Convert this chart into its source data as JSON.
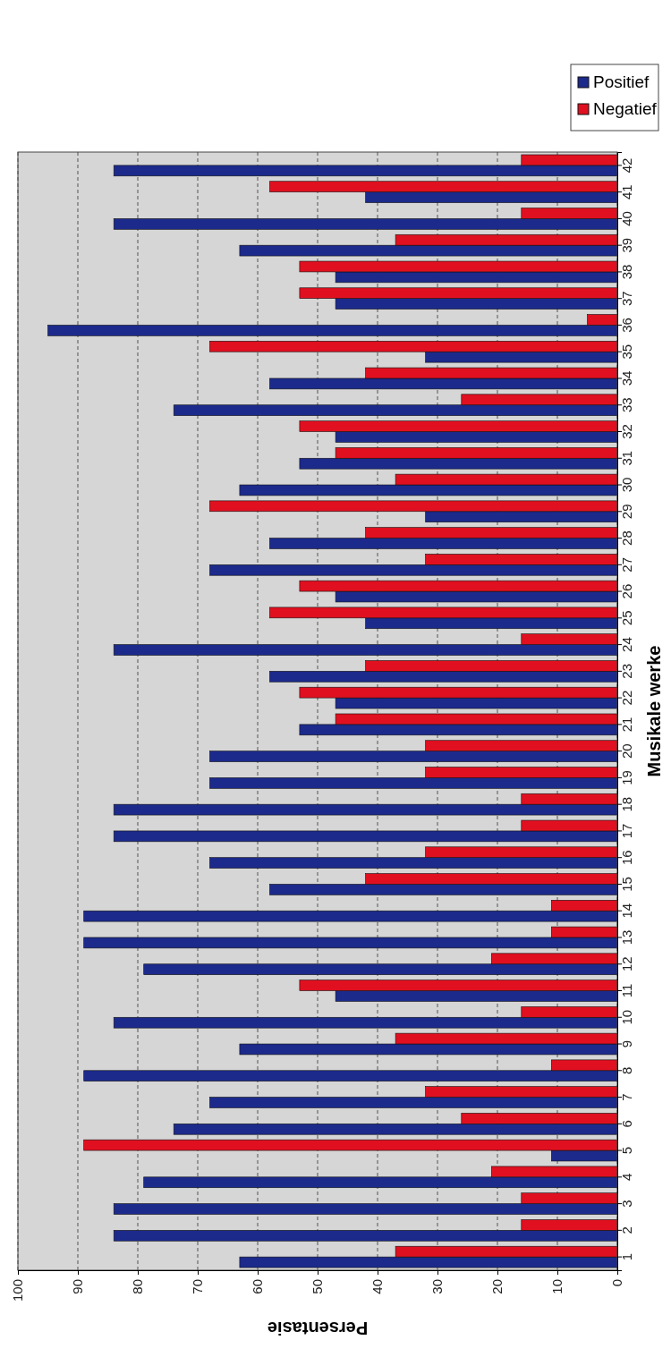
{
  "chart_data": {
    "type": "bar",
    "orientation": "horizontal",
    "xlabel": "Persentasie",
    "ylabel": "Musikale werke",
    "categories": [
      "42",
      "41",
      "40",
      "39",
      "38",
      "37",
      "36",
      "35",
      "34",
      "33",
      "32",
      "31",
      "30",
      "29",
      "28",
      "27",
      "26",
      "25",
      "24",
      "23",
      "22",
      "21",
      "20",
      "19",
      "18",
      "17",
      "16",
      "15",
      "14",
      "13",
      "12",
      "11",
      "10",
      "9",
      "8",
      "7",
      "6",
      "5",
      "4",
      "3",
      "2",
      "1"
    ],
    "series": [
      {
        "name": "Positief",
        "color": "#1c2a8c",
        "values": [
          84,
          42,
          84,
          63,
          47,
          47,
          95,
          32,
          58,
          74,
          47,
          53,
          63,
          32,
          58,
          68,
          47,
          42,
          84,
          58,
          47,
          53,
          68,
          68,
          84,
          84,
          68,
          58,
          89,
          89,
          79,
          47,
          84,
          63,
          89,
          68,
          74,
          11,
          79,
          84,
          84,
          63
        ]
      },
      {
        "name": "Negatief",
        "color": "#e01020",
        "values": [
          16,
          58,
          16,
          37,
          53,
          53,
          5,
          68,
          42,
          26,
          53,
          47,
          37,
          68,
          42,
          32,
          53,
          58,
          16,
          42,
          53,
          47,
          32,
          32,
          16,
          16,
          32,
          42,
          11,
          11,
          21,
          53,
          16,
          37,
          11,
          32,
          26,
          89,
          21,
          16,
          16,
          37
        ]
      }
    ],
    "xlim": [
      100,
      0
    ],
    "xticks": [
      100,
      90,
      80,
      70,
      60,
      50,
      40,
      30,
      20,
      10,
      0
    ],
    "grid": "x",
    "legend": "top right"
  }
}
